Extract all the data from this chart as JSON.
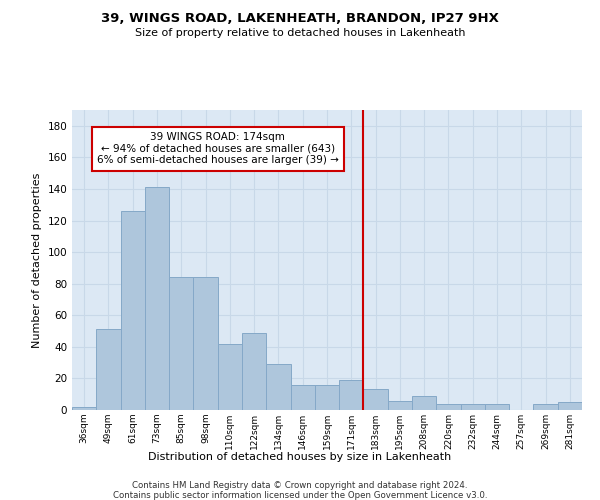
{
  "title": "39, WINGS ROAD, LAKENHEATH, BRANDON, IP27 9HX",
  "subtitle": "Size of property relative to detached houses in Lakenheath",
  "xlabel": "Distribution of detached houses by size in Lakenheath",
  "ylabel": "Number of detached properties",
  "categories": [
    "36sqm",
    "49sqm",
    "61sqm",
    "73sqm",
    "85sqm",
    "98sqm",
    "110sqm",
    "122sqm",
    "134sqm",
    "146sqm",
    "159sqm",
    "171sqm",
    "183sqm",
    "195sqm",
    "208sqm",
    "220sqm",
    "232sqm",
    "244sqm",
    "257sqm",
    "269sqm",
    "281sqm"
  ],
  "values": [
    2,
    51,
    126,
    141,
    84,
    84,
    42,
    49,
    29,
    16,
    16,
    19,
    13,
    6,
    9,
    4,
    4,
    4,
    0,
    4,
    5
  ],
  "bar_color": "#aec6dc",
  "bar_edge_color": "#85a8c8",
  "vline_x_idx": 11.5,
  "vline_color": "#cc0000",
  "annotation_text": "39 WINGS ROAD: 174sqm\n← 94% of detached houses are smaller (643)\n6% of semi-detached houses are larger (39) →",
  "annotation_box_color": "#cc0000",
  "ylim": [
    0,
    190
  ],
  "yticks": [
    0,
    20,
    40,
    60,
    80,
    100,
    120,
    140,
    160,
    180
  ],
  "grid_color": "#c8d8e8",
  "bg_color": "#dce8f4",
  "footer1": "Contains HM Land Registry data © Crown copyright and database right 2024.",
  "footer2": "Contains public sector information licensed under the Open Government Licence v3.0."
}
